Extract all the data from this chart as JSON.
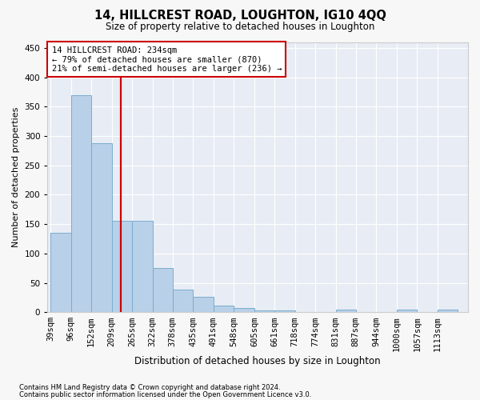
{
  "title": "14, HILLCREST ROAD, LOUGHTON, IG10 4QQ",
  "subtitle": "Size of property relative to detached houses in Loughton",
  "xlabel": "Distribution of detached houses by size in Loughton",
  "ylabel": "Number of detached properties",
  "bar_edges": [
    39,
    96,
    152,
    209,
    265,
    322,
    378,
    435,
    491,
    548,
    605,
    661,
    718,
    774,
    831,
    887,
    944,
    1000,
    1057,
    1113,
    1170
  ],
  "bar_heights": [
    135,
    370,
    288,
    155,
    155,
    75,
    38,
    26,
    11,
    7,
    3,
    3,
    1,
    1,
    4,
    1,
    0,
    4,
    0,
    4
  ],
  "bar_color": "#b8d0e8",
  "bar_edge_color": "#7aaed0",
  "property_size": 234,
  "vline_color": "#cc0000",
  "annotation_line1": "14 HILLCREST ROAD: 234sqm",
  "annotation_line2": "← 79% of detached houses are smaller (870)",
  "annotation_line3": "21% of semi-detached houses are larger (236) →",
  "annotation_box_color": "#ffffff",
  "annotation_box_edge_color": "#cc0000",
  "ylim": [
    0,
    460
  ],
  "yticks": [
    0,
    50,
    100,
    150,
    200,
    250,
    300,
    350,
    400,
    450
  ],
  "footnote1": "Contains HM Land Registry data © Crown copyright and database right 2024.",
  "footnote2": "Contains public sector information licensed under the Open Government Licence v3.0.",
  "fig_background_color": "#f7f7f7",
  "plot_background_color": "#e8ecf4"
}
